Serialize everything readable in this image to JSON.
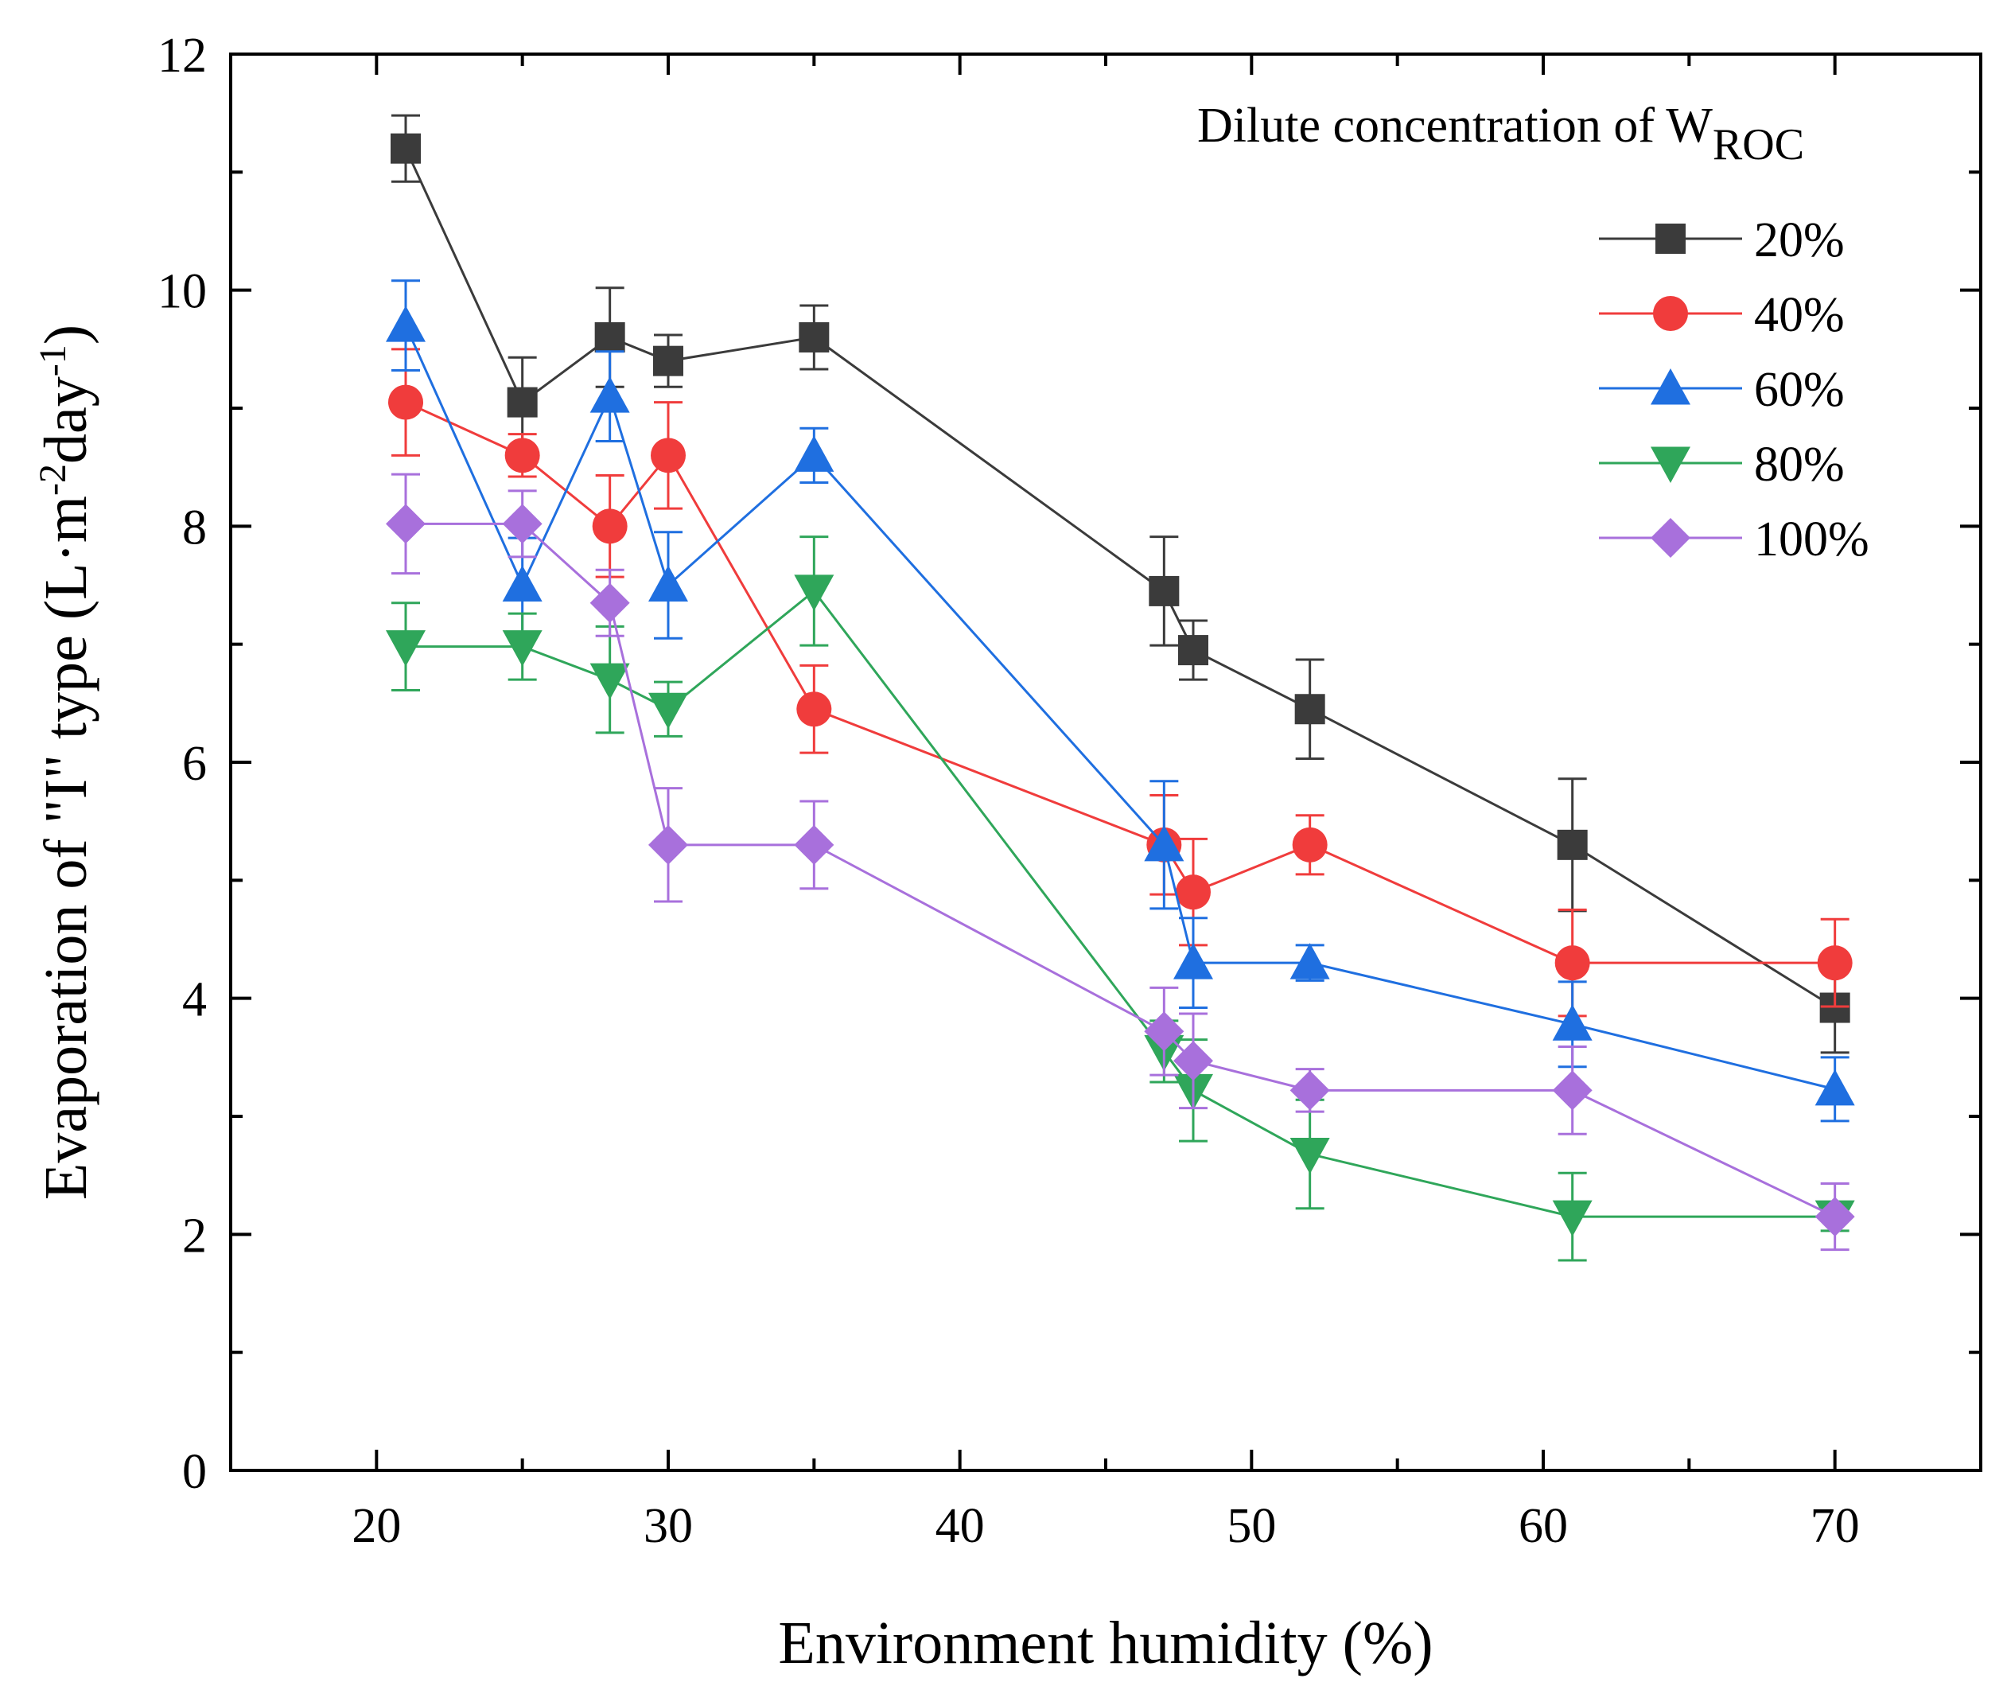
{
  "chart_data": {
    "type": "line",
    "xlabel": "Environment humidity (%)",
    "ylabel_main": "Evaporation of \"I\" type  (L·m",
    "ylabel_sup1": "-2",
    "ylabel_mid": "day",
    "ylabel_sup2": "-1",
    "ylabel_end": ")",
    "xlim": [
      15,
      75
    ],
    "ylim": [
      0,
      12
    ],
    "x_ticks": [
      20,
      30,
      40,
      50,
      60,
      70
    ],
    "x_minor_ticks": [
      25,
      35,
      45,
      55,
      65
    ],
    "y_ticks": [
      0,
      2,
      4,
      6,
      8,
      10,
      12
    ],
    "y_minor_ticks": [
      1,
      3,
      5,
      7,
      9,
      11
    ],
    "legend_title_main": "Dilute concentration of W",
    "legend_title_sub": "ROC",
    "legend_position": "top-right",
    "x": [
      21,
      25,
      28,
      30,
      35,
      47,
      48,
      52,
      61,
      70
    ],
    "series": [
      {
        "name": "20%",
        "marker": "square",
        "color": "#3b3b3b",
        "values": [
          11.2,
          9.05,
          9.6,
          9.4,
          9.6,
          7.45,
          6.95,
          6.45,
          5.3,
          3.92
        ],
        "errors": [
          0.28,
          0.38,
          0.42,
          0.22,
          0.27,
          0.46,
          0.25,
          0.42,
          0.56,
          0.38
        ]
      },
      {
        "name": "40%",
        "marker": "circle",
        "color": "#f03c3c",
        "values": [
          9.05,
          8.6,
          8.0,
          8.6,
          6.45,
          5.3,
          4.9,
          5.3,
          4.3,
          4.3
        ],
        "errors": [
          0.45,
          0.18,
          0.43,
          0.45,
          0.37,
          0.42,
          0.45,
          0.25,
          0.45,
          0.37
        ]
      },
      {
        "name": "60%",
        "marker": "triangle-up",
        "color": "#1f6fe0",
        "values": [
          9.7,
          7.5,
          9.1,
          7.5,
          8.6,
          5.3,
          4.3,
          4.3,
          3.78,
          3.23
        ],
        "errors": [
          0.38,
          0.4,
          0.38,
          0.45,
          0.23,
          0.54,
          0.38,
          0.15,
          0.36,
          0.27
        ]
      },
      {
        "name": "80%",
        "marker": "triangle-down",
        "color": "#2fa65a",
        "values": [
          6.98,
          6.98,
          6.7,
          6.45,
          7.45,
          3.55,
          3.22,
          2.68,
          2.15,
          2.15
        ],
        "errors": [
          0.37,
          0.28,
          0.45,
          0.23,
          0.46,
          0.26,
          0.43,
          0.46,
          0.37,
          0.12
        ]
      },
      {
        "name": "100%",
        "marker": "diamond",
        "color": "#a870dc",
        "values": [
          8.02,
          8.02,
          7.35,
          5.3,
          5.3,
          3.72,
          3.47,
          3.22,
          3.22,
          2.15
        ],
        "errors": [
          0.42,
          0.28,
          0.28,
          0.48,
          0.37,
          0.37,
          0.4,
          0.18,
          0.37,
          0.28
        ]
      }
    ]
  }
}
